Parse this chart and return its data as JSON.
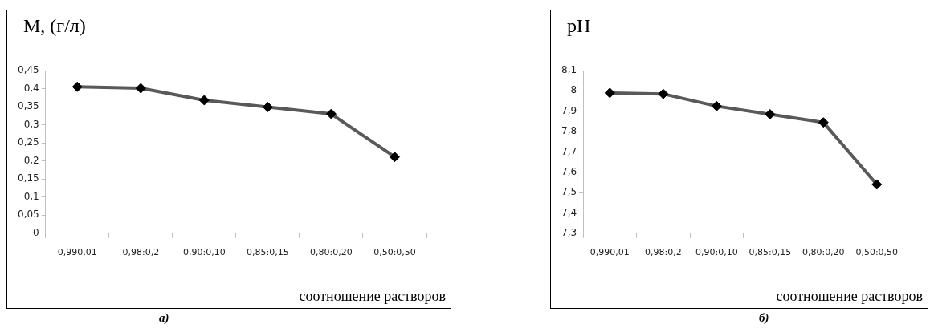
{
  "chart_data": [
    {
      "type": "line",
      "ylabel": "М, (г/л)",
      "xlabel": "соотношение растворов",
      "annotations": [
        "а)"
      ],
      "categories": [
        "0,990,01",
        "0,98:0,2",
        "0,90:0,10",
        "0,85:0,15",
        "0,80:0,20",
        "0,50:0,50"
      ],
      "series": [
        {
          "color": "#595959",
          "values": [
            0.405,
            0.401,
            0.368,
            0.349,
            0.33,
            0.211
          ]
        }
      ],
      "ylim": [
        0,
        0.45
      ],
      "yticks": [
        0,
        {
          "value": 0.05,
          "label": "0,05"
        },
        {
          "value": 0.1,
          "label": "0,1"
        },
        {
          "value": 0.15,
          "label": "0,15"
        },
        {
          "value": 0.2,
          "label": "0,2"
        },
        {
          "value": 0.25,
          "label": "0,25"
        },
        {
          "value": 0.3,
          "label": "0,3"
        },
        {
          "value": 0.35,
          "label": "0,35"
        },
        {
          "value": 0.4,
          "label": "0,4"
        },
        {
          "value": 0.45,
          "label": "0,45"
        }
      ],
      "grid": false,
      "legend": false,
      "marker": "diamond",
      "line_style": "solid"
    },
    {
      "type": "line",
      "ylabel": "pH",
      "xlabel": "соотношение растворов",
      "annotations": [
        "б)"
      ],
      "categories": [
        "0,990,01",
        "0,98:0,2",
        "0,90:0,10",
        "0,85:0,15",
        "0,80:0,20",
        "0,50:0,50"
      ],
      "series": [
        {
          "color": "#595959",
          "values": [
            7.99,
            7.985,
            7.925,
            7.885,
            7.845,
            7.54
          ]
        }
      ],
      "ylim": [
        7.3,
        8.1
      ],
      "yticks": [
        {
          "value": 7.3,
          "label": "7,3"
        },
        {
          "value": 7.4,
          "label": "7,4"
        },
        {
          "value": 7.5,
          "label": "7,5"
        },
        {
          "value": 7.6,
          "label": "7,6"
        },
        {
          "value": 7.7,
          "label": "7,7"
        },
        {
          "value": 7.8,
          "label": "7,8"
        },
        {
          "value": 7.9,
          "label": "7,9"
        },
        8,
        {
          "value": 8.1,
          "label": "8,1"
        }
      ],
      "grid": false,
      "legend": false,
      "marker": "diamond",
      "line_style": "solid"
    }
  ]
}
